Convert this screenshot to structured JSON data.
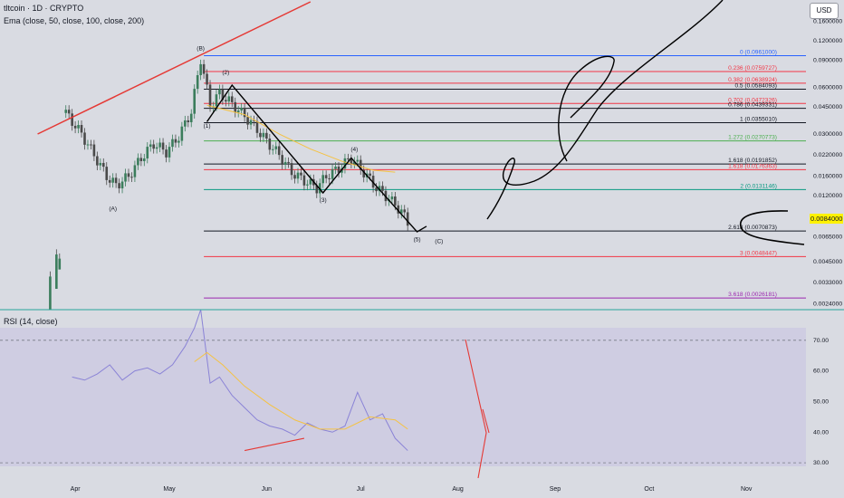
{
  "header": {
    "title": "tltcoin · 1D · CRYPTO",
    "indicator": "Ema (close, 50, close, 100, close, 200)",
    "currency": "USD"
  },
  "rsi_label": "RSI (14, close)",
  "price_tag": "0.0084000",
  "colors": {
    "background": "#d9dbe2",
    "rsi_band": "#cfcde2",
    "candle_up": "#3b7d5c",
    "candle_down": "#4a4a4a",
    "trendline": "#e53935",
    "drawing": "#000000",
    "ema": "#f5c242",
    "rsi_line": "#8a83d6",
    "highlight": "#fff200"
  },
  "chart_data": [
    {
      "type": "candlestick",
      "title": "tltcoin · 1D · CRYPTO",
      "scale": "log",
      "ylim": [
        0.0022,
        0.22
      ],
      "y_ticks": [
        "0.1600000",
        "0.1200000",
        "0.0900000",
        "0.0600000",
        "0.0450000",
        "0.0300000",
        "0.0220000",
        "0.0160000",
        "0.0120000",
        "0.0084000",
        "0.0065000",
        "0.0045000",
        "0.0033000",
        "0.0024000"
      ],
      "x_ticks": [
        "Apr",
        "May",
        "Jun",
        "Jul",
        "Aug",
        "Sep",
        "Oct",
        "Nov"
      ],
      "xlim": [
        "2023-03-08",
        "2023-11-20"
      ],
      "fib_levels": [
        {
          "ratio": "0",
          "value": "0.0961000",
          "color": "#2962ff"
        },
        {
          "ratio": "0.236",
          "value": "0.0759727",
          "color": "#f23645"
        },
        {
          "ratio": "0.382",
          "value": "0.0638924",
          "color": "#f23645"
        },
        {
          "ratio": "0.5",
          "value": "0.0584093",
          "color": "#131722"
        },
        {
          "ratio": "0.702",
          "value": "0.0472326",
          "color": "#f23645"
        },
        {
          "ratio": "0.786",
          "value": "0.0439331",
          "color": "#131722"
        },
        {
          "ratio": "1",
          "value": "0.0355010",
          "color": "#131722"
        },
        {
          "ratio": "1.272",
          "value": "0.0270773",
          "color": "#4caf50"
        },
        {
          "ratio": "1.618",
          "value": "0.0191852",
          "color": "#131722"
        },
        {
          "ratio": "1.618",
          "value": "0.0176363",
          "color": "#f23645"
        },
        {
          "ratio": "2",
          "value": "0.0131146",
          "color": "#089981"
        },
        {
          "ratio": "2.618",
          "value": "0.0070873",
          "color": "#131722"
        },
        {
          "ratio": "3",
          "value": "0.0048447",
          "color": "#f23645"
        },
        {
          "ratio": "3.618",
          "value": "0.0026181",
          "color": "#9c27b0"
        }
      ],
      "wave_labels": [
        {
          "text": "(B)",
          "date": "2023-05-11",
          "price": 0.104
        },
        {
          "text": "(2)",
          "date": "2023-05-19",
          "price": 0.073
        },
        {
          "text": "(1)",
          "date": "2023-05-13",
          "price": 0.033
        },
        {
          "text": "(3)",
          "date": "2023-06-19",
          "price": 0.0109
        },
        {
          "text": "(4)",
          "date": "2023-06-29",
          "price": 0.0232
        },
        {
          "text": "(5)",
          "date": "2023-07-19",
          "price": 0.0061
        },
        {
          "text": "(C)",
          "date": "2023-07-26",
          "price": 0.0059
        },
        {
          "text": "(A)",
          "date": "2023-04-13",
          "price": 0.0096
        }
      ],
      "price_line": [
        [
          "2023-03-29",
          0.041
        ],
        [
          "2023-04-03",
          0.03
        ],
        [
          "2023-04-07",
          0.022
        ],
        [
          "2023-04-11",
          0.016
        ],
        [
          "2023-04-14",
          0.014
        ],
        [
          "2023-04-18",
          0.016
        ],
        [
          "2023-04-22",
          0.021
        ],
        [
          "2023-04-26",
          0.026
        ],
        [
          "2023-04-30",
          0.023
        ],
        [
          "2023-05-04",
          0.029
        ],
        [
          "2023-05-08",
          0.042
        ],
        [
          "2023-05-11",
          0.092
        ],
        [
          "2023-05-14",
          0.046
        ],
        [
          "2023-05-17",
          0.055
        ],
        [
          "2023-05-20",
          0.049
        ],
        [
          "2023-05-24",
          0.041
        ],
        [
          "2023-05-28",
          0.034
        ],
        [
          "2023-06-01",
          0.027
        ],
        [
          "2023-06-05",
          0.022
        ],
        [
          "2023-06-09",
          0.017
        ],
        [
          "2023-06-13",
          0.015
        ],
        [
          "2023-06-17",
          0.0135
        ],
        [
          "2023-06-20",
          0.016
        ],
        [
          "2023-06-24",
          0.018
        ],
        [
          "2023-06-28",
          0.021
        ],
        [
          "2023-07-02",
          0.017
        ],
        [
          "2023-07-06",
          0.0135
        ],
        [
          "2023-07-10",
          0.0115
        ],
        [
          "2023-07-14",
          0.0095
        ],
        [
          "2023-07-17",
          0.0074
        ]
      ],
      "ema_line": [
        [
          "2023-05-13",
          0.046
        ],
        [
          "2023-05-25",
          0.04
        ],
        [
          "2023-06-05",
          0.03
        ],
        [
          "2023-06-15",
          0.024
        ],
        [
          "2023-06-25",
          0.02
        ],
        [
          "2023-07-05",
          0.0175
        ],
        [
          "2023-07-12",
          0.017
        ]
      ]
    },
    {
      "type": "line",
      "title": "RSI (14, close)",
      "ylim": [
        25,
        80
      ],
      "y_ticks": [
        "70.00",
        "60.00",
        "50.00",
        "40.00",
        "30.00"
      ],
      "bands": [
        30,
        70
      ],
      "series": [
        {
          "x": [
            "2023-03-31",
            "2023-04-04",
            "2023-04-08",
            "2023-04-12",
            "2023-04-16",
            "2023-04-20",
            "2023-04-24",
            "2023-04-28",
            "2023-05-02",
            "2023-05-06",
            "2023-05-09",
            "2023-05-11",
            "2023-05-14",
            "2023-05-17",
            "2023-05-21",
            "2023-05-25",
            "2023-05-29",
            "2023-06-02",
            "2023-06-06",
            "2023-06-10",
            "2023-06-14",
            "2023-06-18",
            "2023-06-22",
            "2023-06-26",
            "2023-06-30",
            "2023-07-04",
            "2023-07-08",
            "2023-07-12",
            "2023-07-16"
          ],
          "values": [
            58,
            57,
            59,
            62,
            57,
            60,
            61,
            59,
            62,
            68,
            74,
            95,
            56,
            58,
            52,
            48,
            44,
            42,
            41,
            39,
            43,
            41,
            40,
            42,
            53,
            44,
            46,
            38,
            34
          ]
        },
        {
          "x": [
            "2023-05-09",
            "2023-05-13",
            "2023-05-18",
            "2023-05-25",
            "2023-06-02",
            "2023-06-10",
            "2023-06-18",
            "2023-06-26",
            "2023-07-04",
            "2023-07-12",
            "2023-07-16"
          ],
          "values": [
            63,
            66,
            62,
            55,
            49,
            44,
            41,
            41,
            45,
            44,
            41
          ]
        }
      ]
    }
  ]
}
